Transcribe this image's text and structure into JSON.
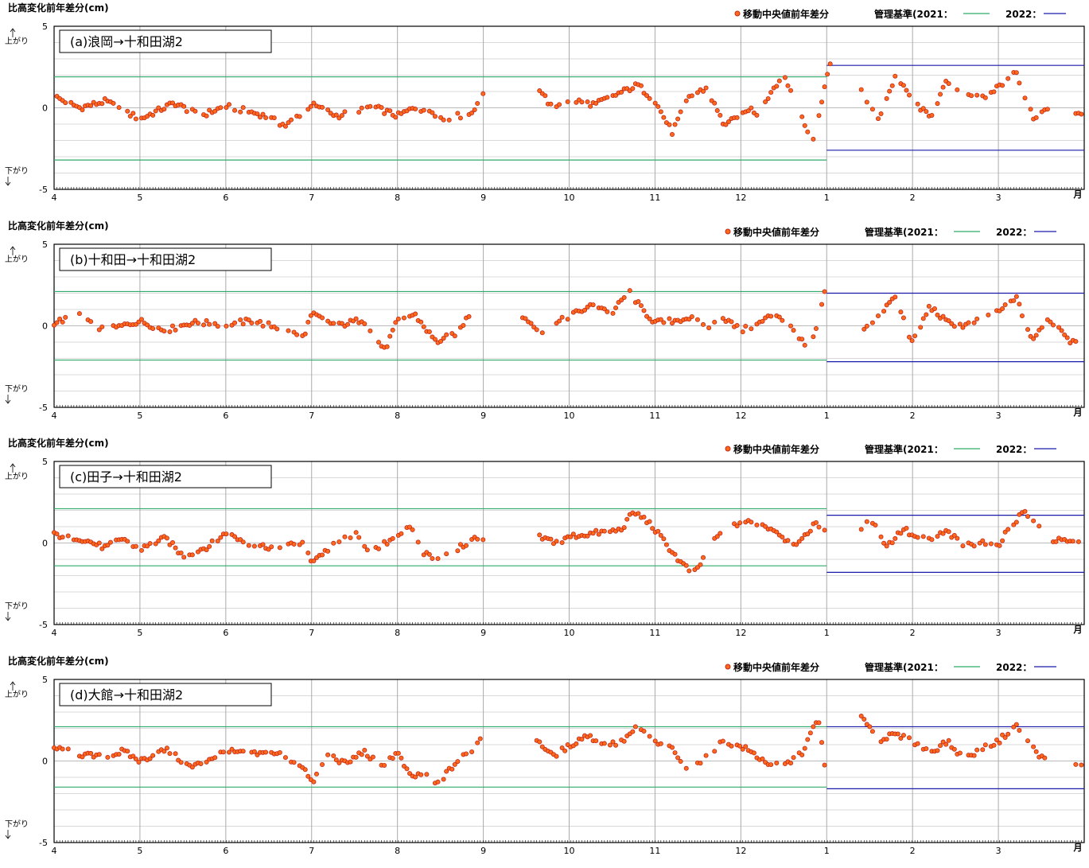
{
  "chart_data": [
    {
      "type": "scatter",
      "title": "(a)浪岡→十和田湖2",
      "ylabel": "比高変化前年差分(cm)",
      "up_label": "上がり",
      "down_label": "下がり",
      "ylim": [
        -5,
        5
      ],
      "y_ticks": [
        5,
        0,
        -5
      ],
      "x_tick_labels": [
        "4",
        "5",
        "6",
        "7",
        "8",
        "9",
        "10",
        "11",
        "12",
        "1",
        "2",
        "3"
      ],
      "x_unit_label": "月",
      "legend": {
        "series": "移動中央値前年差分",
        "baseline_prefix": "管理基準(2021：",
        "baseline_2022": "2022："
      },
      "colors": {
        "marker_fill": "#ff6a1a",
        "marker_edge": "#c0281c",
        "baseline_2021": "#2eaa6a",
        "baseline_2022": "#1a1aaa",
        "grid": "#aaaaaa"
      },
      "baseline_2021": {
        "upper": 1.9,
        "lower": -3.2,
        "x_range": [
          0,
          9
        ]
      },
      "baseline_2022": {
        "upper": 2.6,
        "lower": -2.6,
        "x_range": [
          9,
          12
        ]
      },
      "series_anchors": {
        "x": [
          0,
          0.3,
          0.6,
          1,
          1.4,
          1.7,
          2,
          2.4,
          2.7,
          3,
          3.3,
          3.7,
          4,
          4.2,
          4.4,
          4.55,
          4.7,
          4.85,
          5,
          5.35,
          5.6,
          5.8,
          6,
          6.3,
          6.5,
          6.8,
          7,
          7.2,
          7.4,
          7.6,
          7.8,
          8,
          8.1,
          8.2,
          8.4,
          8.5,
          8.65,
          8.75,
          8.85,
          8.95,
          9,
          9.1,
          9.4,
          9.6,
          9.8,
          10,
          10.2,
          10.4,
          10.6,
          10.8,
          11,
          11.2,
          11.4,
          11.6,
          11.7,
          11.85,
          11.95,
          12
        ],
        "y": [
          0.7,
          0,
          0.4,
          -0.7,
          0.3,
          -0.5,
          0.1,
          -0.4,
          -1.1,
          0.2,
          -0.5,
          0.1,
          -0.5,
          0,
          -0.2,
          -0.8,
          -0.5,
          -0.4,
          0.9,
          null,
          1.6,
          0,
          0.5,
          0.2,
          0.7,
          1.4,
          0.4,
          -1.5,
          0.7,
          1.2,
          -1,
          -0.6,
          0,
          -0.4,
          1.4,
          2,
          0.3,
          -1.2,
          -1.9,
          0.7,
          2.0,
          3.7,
          1,
          -0.7,
          1.9,
          0.5,
          -0.6,
          1.6,
          1.0,
          0.5,
          1.3,
          2.2,
          -0.6,
          0,
          null,
          -0.6,
          -0.3,
          -0.1
        ]
      },
      "gaps": [
        [
          9.05,
          9.4
        ],
        [
          12.2,
          12.5
        ],
        [
          12.65,
          12.9
        ]
      ]
    },
    {
      "type": "scatter",
      "title": "(b)十和田→十和田湖2",
      "ylabel": "比高変化前年差分(cm)",
      "up_label": "上がり",
      "down_label": "下がり",
      "ylim": [
        -5,
        5
      ],
      "y_ticks": [
        5,
        0,
        -5
      ],
      "x_tick_labels": [
        "4",
        "5",
        "6",
        "7",
        "8",
        "9",
        "10",
        "11",
        "12",
        "1",
        "2",
        "3"
      ],
      "x_unit_label": "月",
      "legend": {
        "series": "移動中央値前年差分",
        "baseline_prefix": "管理基準(2021：",
        "baseline_2022": "2022："
      },
      "colors": {
        "marker_fill": "#ff6a1a",
        "marker_edge": "#c0281c",
        "baseline_2021": "#2eaa6a",
        "baseline_2022": "#1a1aaa",
        "grid": "#aaaaaa"
      },
      "baseline_2021": {
        "upper": 2.1,
        "lower": -2.1,
        "x_range": [
          0,
          9
        ]
      },
      "baseline_2022": {
        "upper": 2.0,
        "lower": -2.2,
        "x_range": [
          9,
          12
        ]
      },
      "series_anchors": {
        "x": [
          0,
          0.3,
          0.6,
          1,
          1.3,
          1.6,
          2,
          2.3,
          2.6,
          2.9,
          3,
          3.3,
          3.6,
          3.85,
          4,
          4.2,
          4.45,
          4.7,
          4.85,
          5,
          5.45,
          5.7,
          5.9,
          6,
          6.3,
          6.5,
          6.7,
          6.85,
          7,
          7.2,
          7.4,
          7.6,
          7.8,
          8,
          8.2,
          8.4,
          8.6,
          8.8,
          8.9,
          9,
          9.1,
          9.2,
          9.4,
          9.6,
          9.8,
          10,
          10.2,
          10.4,
          10.6,
          10.8,
          11,
          11.2,
          11.4,
          11.55,
          11.7,
          11.85,
          12
        ],
        "y": [
          0.2,
          0.6,
          -0.3,
          0.3,
          -0.3,
          0.2,
          0.1,
          0.3,
          -0.1,
          -0.7,
          0.7,
          0,
          0.4,
          -1.5,
          0.3,
          0.7,
          -1.0,
          -0.4,
          0.8,
          null,
          0.6,
          -0.4,
          0.3,
          0.6,
          1.3,
          0.8,
          2.1,
          1.0,
          0.2,
          0.3,
          0.5,
          -0.1,
          0.5,
          -0.3,
          0.1,
          0.8,
          -0.2,
          -1.6,
          0.2,
          2.5,
          4.2,
          3.6,
          -0.3,
          0.6,
          1.8,
          -1.1,
          1.2,
          0.2,
          0.0,
          0.4,
          0.8,
          1.8,
          -1.0,
          0.4,
          0.0,
          -1.0,
          -0.5
        ]
      },
      "gaps": [
        [
          9.0,
          9.4
        ],
        [
          12.3,
          12.65
        ],
        [
          12.7,
          12.95
        ]
      ]
    },
    {
      "type": "scatter",
      "title": "(c)田子→十和田湖2",
      "ylabel": "比高変化前年差分(cm)",
      "up_label": "上がり",
      "down_label": "下がり",
      "ylim": [
        -5,
        5
      ],
      "y_ticks": [
        5,
        0,
        -5
      ],
      "x_tick_labels": [
        "4",
        "5",
        "6",
        "7",
        "8",
        "9",
        "10",
        "11",
        "12",
        "1",
        "2",
        "3"
      ],
      "x_unit_label": "月",
      "legend": {
        "series": "移動中央値前年差分",
        "baseline_prefix": "管理基準(2021：",
        "baseline_2022": "2022："
      },
      "colors": {
        "marker_fill": "#ff6a1a",
        "marker_edge": "#c0281c",
        "baseline_2021": "#2eaa6a",
        "baseline_2022": "#1a1aaa",
        "grid": "#aaaaaa"
      },
      "baseline_2021": {
        "upper": 2.1,
        "lower": -1.4,
        "x_range": [
          0,
          9
        ]
      },
      "baseline_2022": {
        "upper": 1.7,
        "lower": -1.8,
        "x_range": [
          9,
          12
        ]
      },
      "series_anchors": {
        "x": [
          0,
          0.3,
          0.6,
          0.8,
          1,
          1.3,
          1.5,
          1.8,
          2,
          2.3,
          2.6,
          2.9,
          3,
          3.3,
          3.5,
          3.7,
          4,
          4.15,
          4.3,
          4.5,
          4.75,
          4.9,
          5,
          5.45,
          5.6,
          5.9,
          6,
          6.3,
          6.6,
          6.75,
          6.9,
          7,
          7.3,
          7.45,
          7.55,
          7.7,
          8,
          8.2,
          8.4,
          8.55,
          8.7,
          8.85,
          9,
          9.1,
          9.3,
          9.5,
          9.7,
          9.9,
          10,
          10.2,
          10.4,
          10.6,
          10.8,
          11,
          11.1,
          11.3,
          11.6,
          11.9,
          12
        ],
        "y": [
          0.5,
          0.3,
          -0.3,
          0.3,
          -0.4,
          0.3,
          -0.8,
          -0.2,
          0.6,
          -0.1,
          -0.3,
          0.0,
          -1.1,
          0.0,
          0.6,
          -0.6,
          0.5,
          0.9,
          -0.6,
          -1.0,
          -0.2,
          0.3,
          0.1,
          null,
          0.4,
          0.0,
          0.4,
          0.6,
          0.8,
          1.9,
          1.4,
          0.8,
          -1.2,
          -1.9,
          -1.1,
          0.3,
          1.3,
          1.2,
          0.8,
          0.1,
          0.0,
          1.2,
          0.7,
          -0.9,
          0.3,
          1.6,
          -0.2,
          0.9,
          0.4,
          0.2,
          0.7,
          -0.2,
          0.1,
          -0.1,
          0.7,
          2.0,
          0.2,
          0.0,
          -0.1
        ]
      },
      "gaps": [
        [
          9.0,
          9.4
        ],
        [
          12.2,
          12.6
        ],
        [
          12.7,
          12.9
        ]
      ]
    },
    {
      "type": "scatter",
      "title": "(d)大館→十和田湖2",
      "ylabel": "比高変化前年差分(cm)",
      "up_label": "上がり",
      "down_label": "下がり",
      "ylim": [
        -5,
        5
      ],
      "y_ticks": [
        5,
        0,
        -5
      ],
      "x_tick_labels": [
        "4",
        "5",
        "6",
        "7",
        "8",
        "9",
        "10",
        "11",
        "12",
        "1",
        "2",
        "3"
      ],
      "x_unit_label": "月",
      "legend": {
        "series": "移動中央値前年差分",
        "baseline_prefix": "管理基準(2021：",
        "baseline_2022": "2022："
      },
      "colors": {
        "marker_fill": "#ff6a1a",
        "marker_edge": "#c0281c",
        "baseline_2021": "#2eaa6a",
        "baseline_2022": "#1a1aaa",
        "grid": "#aaaaaa"
      },
      "baseline_2021": {
        "upper": 2.1,
        "lower": -1.6,
        "x_range": [
          0,
          9
        ]
      },
      "baseline_2022": {
        "upper": 2.1,
        "lower": -1.7,
        "x_range": [
          9,
          12
        ]
      },
      "series_anchors": {
        "x": [
          0,
          0.3,
          0.6,
          0.8,
          1,
          1.3,
          1.6,
          2,
          2.3,
          2.6,
          2.9,
          3,
          3.2,
          3.4,
          3.6,
          3.8,
          4,
          4.15,
          4.3,
          4.45,
          4.7,
          4.9,
          5,
          5.4,
          5.6,
          5.8,
          6,
          6.2,
          6.4,
          6.6,
          6.8,
          7,
          7.2,
          7.4,
          7.6,
          7.8,
          8,
          8.1,
          8.3,
          8.5,
          8.7,
          8.9,
          9,
          9.1,
          9.2,
          9.4,
          9.6,
          9.8,
          10,
          10.2,
          10.4,
          10.6,
          10.8,
          11,
          11.2,
          11.4,
          11.55,
          11.7,
          11.9,
          12
        ],
        "y": [
          0.8,
          0.4,
          0.2,
          0.6,
          0.0,
          0.7,
          -0.4,
          0.6,
          0.4,
          0.5,
          -0.3,
          -1.4,
          0.4,
          -0.2,
          0.6,
          -0.3,
          0.5,
          -1.0,
          -0.8,
          -1.5,
          0.0,
          0.8,
          1.7,
          null,
          1.5,
          0.3,
          0.9,
          1.6,
          1.0,
          1.1,
          2.1,
          1.1,
          0.7,
          -0.7,
          0.4,
          1.2,
          0.9,
          0.6,
          -0.1,
          -0.3,
          0.4,
          2.6,
          -1.0,
          0.2,
          3.0,
          2.9,
          1.3,
          1.6,
          1.2,
          0.5,
          1.2,
          0.1,
          0.7,
          1.2,
          2.2,
          0.8,
          0.0,
          null,
          -0.3,
          -0.1
        ]
      },
      "gaps": [
        [
          9.0,
          9.4
        ],
        [
          12.3,
          12.65
        ],
        [
          12.7,
          12.9
        ]
      ]
    }
  ]
}
